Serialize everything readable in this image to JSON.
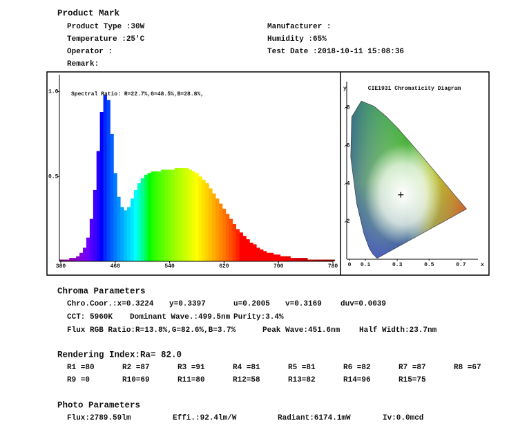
{
  "header": {
    "title": "Product Mark",
    "fields": [
      "Product Type :30W",
      "Temperature :25'C",
      "Operator :",
      "Remark:",
      "Manufacturer :",
      "Humidity :65%",
      "Test Date :2018-10-11 15:08:36"
    ]
  },
  "spectrum": {
    "type": "bar",
    "annotation": "Spectral Ratio:  R=22.7%,G=48.5%,B=28.8%,",
    "x": [
      380,
      385,
      390,
      395,
      400,
      405,
      410,
      415,
      420,
      425,
      430,
      435,
      440,
      445,
      450,
      455,
      460,
      465,
      470,
      475,
      480,
      485,
      490,
      495,
      500,
      505,
      510,
      515,
      520,
      525,
      530,
      535,
      540,
      545,
      550,
      555,
      560,
      565,
      570,
      575,
      580,
      585,
      590,
      595,
      600,
      605,
      610,
      615,
      620,
      625,
      630,
      635,
      640,
      645,
      650,
      655,
      660,
      665,
      670,
      675,
      680,
      685,
      690,
      695,
      700,
      705,
      710,
      715,
      720,
      725,
      730,
      735,
      740,
      745,
      750,
      755,
      760,
      765,
      770,
      775,
      780
    ],
    "values": [
      0.01,
      0.01,
      0.01,
      0.02,
      0.02,
      0.03,
      0.05,
      0.08,
      0.14,
      0.25,
      0.42,
      0.65,
      0.88,
      0.98,
      0.95,
      0.75,
      0.52,
      0.38,
      0.32,
      0.3,
      0.32,
      0.37,
      0.42,
      0.46,
      0.49,
      0.51,
      0.52,
      0.53,
      0.53,
      0.53,
      0.54,
      0.54,
      0.54,
      0.54,
      0.55,
      0.55,
      0.55,
      0.55,
      0.54,
      0.53,
      0.52,
      0.5,
      0.48,
      0.46,
      0.43,
      0.4,
      0.37,
      0.34,
      0.31,
      0.28,
      0.25,
      0.22,
      0.19,
      0.17,
      0.15,
      0.13,
      0.11,
      0.1,
      0.08,
      0.07,
      0.06,
      0.05,
      0.05,
      0.04,
      0.04,
      0.03,
      0.03,
      0.03,
      0.02,
      0.02,
      0.02,
      0.02,
      0.02,
      0.01,
      0.01,
      0.01,
      0.01,
      0.01,
      0.01,
      0.01,
      0.01
    ],
    "xlim": [
      380,
      780
    ],
    "xticks": [
      380,
      460,
      540,
      620,
      700,
      780
    ],
    "ylim": [
      0,
      1.1
    ],
    "yticks": [
      0.5,
      {
        "value": 1,
        "label": "1.0"
      }
    ]
  },
  "cie": {
    "type": "scatter",
    "title": "CIE1931 Chromaticity Diagram",
    "x_label": "x",
    "y_label": "y",
    "x": [
      0.3224
    ],
    "values": [
      0.3397
    ],
    "xlim": [
      0,
      0.85
    ],
    "xticks": [
      0,
      0.1,
      {
        "value": 0.3,
        "label": "0.3"
      },
      0.5,
      0.7
    ],
    "ylim": [
      0,
      0.9
    ],
    "yticks": [
      {
        "value": 0.2,
        "label": ".2"
      },
      {
        "value": 0.4,
        "label": ".4"
      },
      {
        "value": 0.6,
        "label": ".6"
      },
      {
        "value": 0.8,
        "label": ".8"
      }
    ]
  },
  "chroma": {
    "title": "Chroma Parameters",
    "lines": [
      [
        "Chro.Coor.:x=0.3224",
        "y=0.3397",
        "u=0.2005",
        "v=0.3169",
        "duv=0.0039"
      ],
      [
        "CCT: 5960K",
        "Dominant Wave.:499.5nm",
        "Purity:3.4%"
      ],
      [
        "Flux RGB Ratio:R=13.8%,G=82.6%,B=3.7%",
        "Peak Wave:451.6nm",
        "Half Width:23.7nm"
      ]
    ]
  },
  "rendering": {
    "title": "Rendering Index:Ra= 82.0",
    "rows": [
      [
        "R1 =80",
        "R2 =87",
        "R3 =91",
        "R4 =81",
        "R5 =81",
        "R6 =82",
        "R7 =87",
        "R8 =67"
      ],
      [
        "R9 =0",
        "R10=69",
        "R11=80",
        "R12=58",
        "R13=82",
        "R14=96",
        "R15=75"
      ]
    ]
  },
  "photo": {
    "title": "Photo Parameters",
    "items": [
      "Flux:2789.59lm",
      "Effi.:92.4lm/W",
      "Radiant:6174.1mW",
      "Iv:0.0mcd"
    ]
  }
}
